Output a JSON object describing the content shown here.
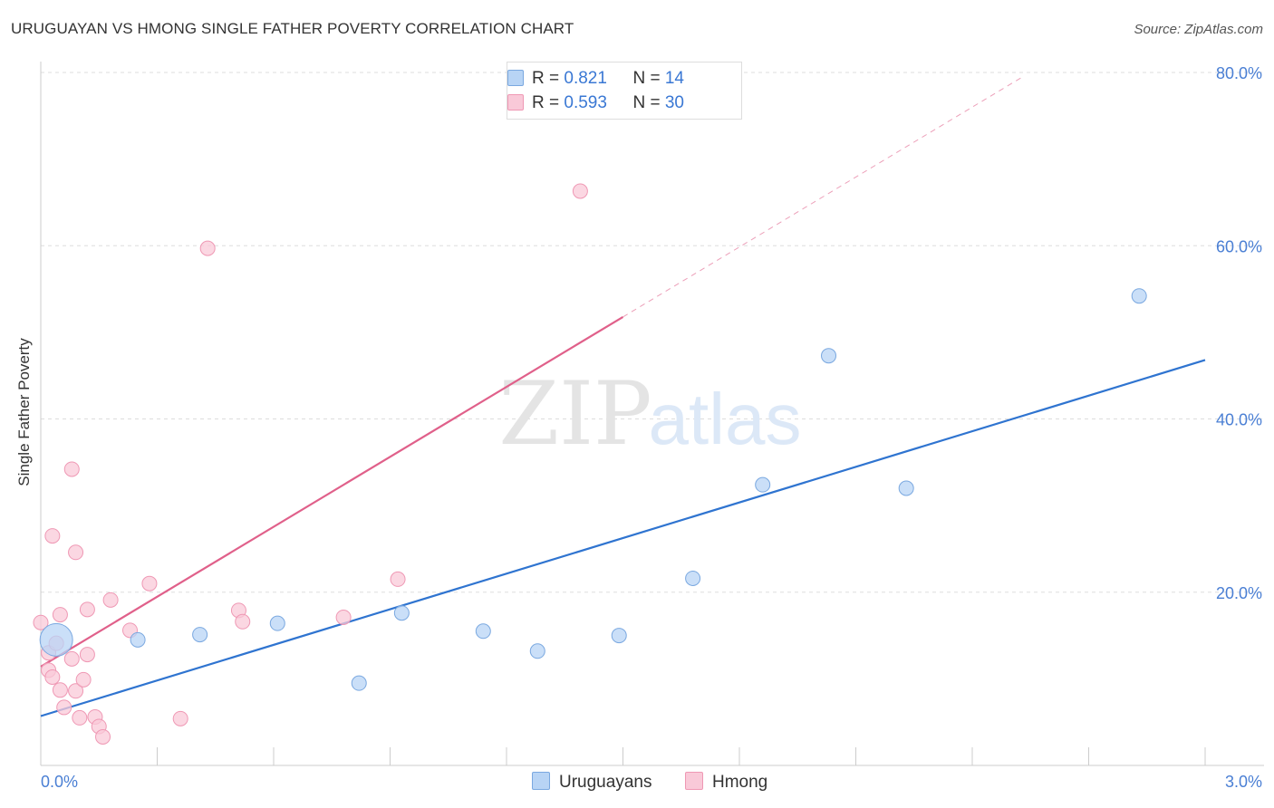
{
  "title": "URUGUAYAN VS HMONG SINGLE FATHER POVERTY CORRELATION CHART",
  "source": "Source: ZipAtlas.com",
  "watermark": {
    "zip": "ZIP",
    "atlas": "atlas"
  },
  "legend": {
    "rows": [
      {
        "r_label": "R = ",
        "r_value": "0.821",
        "n_label": "N = ",
        "n_value": "14"
      },
      {
        "r_label": "R = ",
        "r_value": "0.593",
        "n_label": "N = ",
        "n_value": "30"
      }
    ]
  },
  "colors": {
    "uruguayans_fill": "#b8d4f5",
    "uruguayans_stroke": "#7aa8e0",
    "uruguayans_line": "#2f74d0",
    "hmong_fill": "#f9c9d8",
    "hmong_stroke": "#ef98b4",
    "hmong_line": "#e0608a",
    "tick_color": "#4a7fd4",
    "grid": "#dddddd"
  },
  "chart_data": {
    "type": "scatter",
    "title": "URUGUAYAN VS HMONG SINGLE FATHER POVERTY CORRELATION CHART",
    "xlabel": "",
    "ylabel": "Single Father Poverty",
    "xlim": [
      0,
      3.0
    ],
    "ylim": [
      0,
      80
    ],
    "x_tick_labels": [
      "0.0%",
      "3.0%"
    ],
    "y_ticks": [
      {
        "value": 20,
        "label": "20.0%"
      },
      {
        "value": 40,
        "label": "40.0%"
      },
      {
        "value": 60,
        "label": "60.0%"
      },
      {
        "value": 80,
        "label": "80.0%"
      }
    ],
    "grid": true,
    "legend_position": "top-center",
    "series": [
      {
        "name": "Uruguayans",
        "r": 0.821,
        "n": 14,
        "trend": {
          "x0": 0.0,
          "y0": 5.7,
          "x1": 3.0,
          "y1": 46.8,
          "solid_to": 3.0
        },
        "points": [
          {
            "x": 0.04,
            "y": 14.5,
            "big": true
          },
          {
            "x": 0.25,
            "y": 14.5
          },
          {
            "x": 0.41,
            "y": 15.1
          },
          {
            "x": 0.61,
            "y": 16.4
          },
          {
            "x": 0.82,
            "y": 9.5
          },
          {
            "x": 0.93,
            "y": 17.6
          },
          {
            "x": 1.14,
            "y": 15.5
          },
          {
            "x": 1.28,
            "y": 13.2
          },
          {
            "x": 1.49,
            "y": 15.0
          },
          {
            "x": 1.68,
            "y": 21.6
          },
          {
            "x": 1.86,
            "y": 32.4
          },
          {
            "x": 2.03,
            "y": 47.3
          },
          {
            "x": 2.23,
            "y": 32.0
          },
          {
            "x": 2.83,
            "y": 54.2
          }
        ]
      },
      {
        "name": "Hmong",
        "r": 0.593,
        "n": 30,
        "trend": {
          "x0": 0.0,
          "y0": 11.4,
          "x1": 2.53,
          "y1": 79.5,
          "solid_to": 1.5
        },
        "points": [
          {
            "x": 0.0,
            "y": 16.5
          },
          {
            "x": 0.02,
            "y": 13.0
          },
          {
            "x": 0.02,
            "y": 11.0
          },
          {
            "x": 0.03,
            "y": 10.2
          },
          {
            "x": 0.03,
            "y": 26.5
          },
          {
            "x": 0.04,
            "y": 14.1
          },
          {
            "x": 0.05,
            "y": 8.7
          },
          {
            "x": 0.05,
            "y": 17.4
          },
          {
            "x": 0.06,
            "y": 6.7
          },
          {
            "x": 0.08,
            "y": 34.2
          },
          {
            "x": 0.08,
            "y": 12.3
          },
          {
            "x": 0.09,
            "y": 24.6
          },
          {
            "x": 0.09,
            "y": 8.6
          },
          {
            "x": 0.1,
            "y": 5.5
          },
          {
            "x": 0.11,
            "y": 9.9
          },
          {
            "x": 0.12,
            "y": 12.8
          },
          {
            "x": 0.12,
            "y": 18.0
          },
          {
            "x": 0.14,
            "y": 5.6
          },
          {
            "x": 0.15,
            "y": 4.5
          },
          {
            "x": 0.16,
            "y": 3.3
          },
          {
            "x": 0.18,
            "y": 19.1
          },
          {
            "x": 0.23,
            "y": 15.6
          },
          {
            "x": 0.28,
            "y": 21.0
          },
          {
            "x": 0.36,
            "y": 5.4
          },
          {
            "x": 0.43,
            "y": 59.7
          },
          {
            "x": 0.51,
            "y": 17.9
          },
          {
            "x": 0.52,
            "y": 16.6
          },
          {
            "x": 0.78,
            "y": 17.1
          },
          {
            "x": 0.92,
            "y": 21.5
          },
          {
            "x": 1.39,
            "y": 66.3
          }
        ]
      }
    ]
  },
  "bottom_legend": [
    {
      "label": "Uruguayans"
    },
    {
      "label": "Hmong"
    }
  ]
}
